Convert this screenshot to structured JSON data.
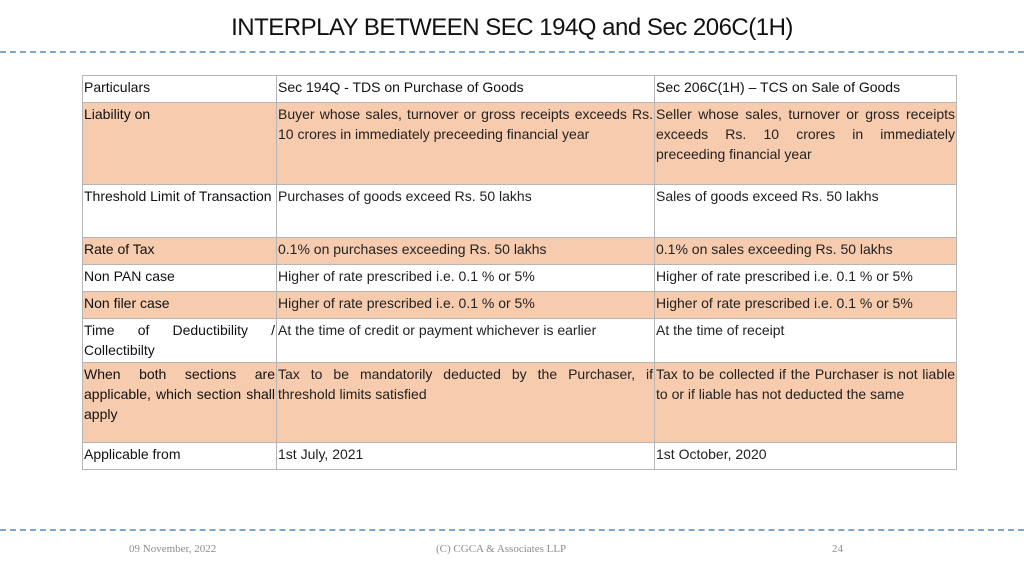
{
  "slide": {
    "title": "INTERPLAY BETWEEN SEC 194Q and Sec 206C(1H)"
  },
  "table": {
    "header": [
      "Particulars",
      "Sec 194Q  - TDS on Purchase of Goods",
      "Sec 206C(1H) – TCS on Sale of Goods"
    ],
    "rows": [
      [
        "Liability on",
        "Buyer whose sales, turnover or gross receipts exceeds Rs. 10 crores in immediately preceeding financial year",
        "Seller whose sales, turnover or gross receipts exceeds Rs. 10 crores in immediately preceeding financial year"
      ],
      [
        "Threshold Limit of Transaction",
        "Purchases of goods exceed Rs. 50 lakhs",
        "Sales of goods exceed Rs. 50 lakhs"
      ],
      [
        "Rate of Tax",
        "0.1% on purchases exceeding Rs. 50 lakhs",
        "0.1% on sales exceeding Rs. 50 lakhs"
      ],
      [
        "Non PAN case",
        "Higher of rate prescribed i.e. 0.1 % or 5%",
        "Higher of rate prescribed i.e. 0.1 % or 5%"
      ],
      [
        "Non filer case",
        "Higher of rate prescribed i.e. 0.1 % or 5%",
        "Higher of rate prescribed i.e. 0.1 % or 5%"
      ],
      [
        "Time of Deductibility / Collectibilty",
        "At the time of credit or payment whichever is earlier",
        "At the time of receipt"
      ],
      [
        "When both sections are applicable, which section shall apply",
        "Tax to be mandatorily deducted by the Purchaser, if threshold limits satisfied",
        "Tax to be collected if the Purchaser is not liable to or if liable has not deducted the same"
      ],
      [
        "Applicable from",
        "1st July, 2021",
        "1st October, 2020"
      ]
    ]
  },
  "footer": {
    "date": "09 November, 2022",
    "company": "(C) CGCA & Associates LLP",
    "page_number": "24"
  },
  "colors": {
    "row_shade": "#f7cbad",
    "divider": "#7fa6c6"
  }
}
